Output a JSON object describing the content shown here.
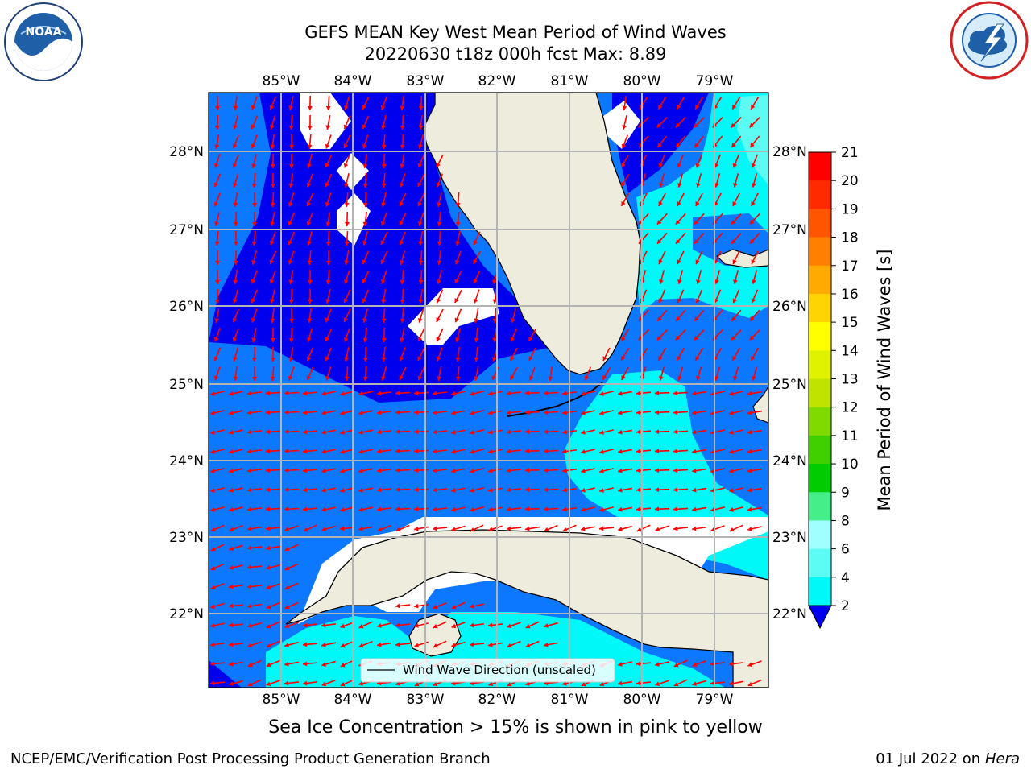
{
  "title": {
    "line1": "GEFS MEAN Key West Mean Period of Wind Waves",
    "line2": "20220630 t18z 000h fcst   Max: 8.89"
  },
  "logos": {
    "noaa_text": "NOAA",
    "noaa_ring_text": "NATIONAL OCEANIC AND ATMOSPHERIC ADMINISTRATION · U.S. DEPARTMENT OF COMMERCE",
    "nws_ring_text": "NATIONAL WEATHER SERVICE"
  },
  "map": {
    "lon_labels": [
      "85°W",
      "84°W",
      "83°W",
      "82°W",
      "81°W",
      "80°W",
      "79°W"
    ],
    "lat_labels": [
      "28°N",
      "27°N",
      "26°N",
      "25°N",
      "24°N",
      "23°N",
      "22°N"
    ],
    "legend_label": "Wind Wave Direction (unscaled)",
    "colors": {
      "land": "#eeecdc",
      "band_2_4": "#0c78ff",
      "band_lt2": "#0000ee",
      "band_4_6": "#00f8f8",
      "band_6_8": "#5cfcf4",
      "arrow": "#ff0000",
      "grid": "#b4b4b4"
    }
  },
  "colorbar": {
    "label": "Mean Period of Wind Waves [s]",
    "ticks": [
      "21",
      "20",
      "19",
      "18",
      "17",
      "16",
      "15",
      "14",
      "13",
      "12",
      "11",
      "10",
      "9",
      "8",
      "6",
      "4",
      "2"
    ],
    "colors": [
      "#ff0000",
      "#ff2a00",
      "#ff5500",
      "#ff8000",
      "#ffaa00",
      "#ffd400",
      "#ffff00",
      "#e0f200",
      "#c0e400",
      "#80da00",
      "#40d000",
      "#00cc00",
      "#44ee88",
      "#a0ffff",
      "#5cfcf4",
      "#00f8f8",
      "#0c78ff",
      "#0000ee"
    ]
  },
  "caption": "Sea Ice Concentration > 15% is shown in pink to yellow",
  "footer": {
    "left": "NCEP/EMC/Verification Post Processing Product Generation Branch",
    "date": "01 Jul 2022 on ",
    "machine": "Hera"
  }
}
